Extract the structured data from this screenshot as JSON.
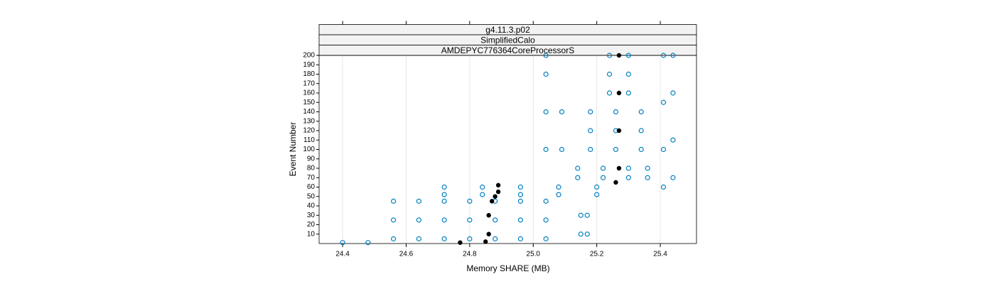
{
  "chart_data": {
    "type": "scatter",
    "strips": [
      "g4.11.3.p02",
      "SimplifiedCalo",
      "AMDEPYC776364CoreProcessorS"
    ],
    "x_label": "Memory SHARE (MB)",
    "y_label": "Event Number",
    "xlim": [
      24.326,
      25.514
    ],
    "ylim": [
      0,
      200
    ],
    "xticks": [
      24.4,
      24.6,
      24.8,
      {
        "value": 25,
        "label": "25.0"
      },
      25.2,
      25.4
    ],
    "yticks": [
      10,
      20,
      30,
      40,
      50,
      60,
      70,
      80,
      90,
      100,
      110,
      120,
      130,
      140,
      150,
      160,
      170,
      180,
      190,
      200
    ],
    "grid": true,
    "series": [
      {
        "color": "#0080c0",
        "marker": "open",
        "x": [
          24.56,
          24.64,
          24.72,
          24.8,
          24.88,
          24.96,
          25.04,
          24.56,
          24.64,
          24.72,
          24.8,
          24.88,
          24.96,
          25.04,
          24.56,
          24.64,
          24.72,
          24.8,
          24.88,
          24.96,
          25.04,
          24.72,
          24.84,
          24.96,
          25.08,
          25.2,
          24.72,
          24.84,
          24.96,
          25.08,
          25.2,
          25.14,
          25.22,
          25.3,
          25.36,
          25.14,
          25.22,
          25.3,
          25.36,
          25.18,
          25.26,
          25.34,
          25.18,
          25.26,
          25.34,
          25.18,
          25.26,
          25.34,
          25.24,
          25.3,
          25.24,
          25.3,
          25.24,
          25.3,
          25.04,
          25.04,
          25.04,
          25.04,
          25.41,
          25.41,
          25.41,
          25.41,
          25.44,
          25.44,
          25.44,
          25.44,
          25.09,
          25.09,
          25.15,
          25.15,
          25.17,
          25.17,
          24.4,
          24.48
        ],
        "y": [
          5,
          5,
          5,
          5,
          5,
          5,
          5,
          25,
          25,
          25,
          25,
          25,
          25,
          25,
          45,
          45,
          45,
          45,
          45,
          45,
          45,
          52,
          52,
          52,
          52,
          52,
          60,
          60,
          60,
          60,
          60,
          70,
          70,
          70,
          70,
          80,
          80,
          80,
          80,
          100,
          100,
          100,
          120,
          120,
          120,
          140,
          140,
          140,
          160,
          160,
          180,
          180,
          200,
          200,
          100,
          140,
          180,
          200,
          60,
          100,
          150,
          200,
          70,
          110,
          160,
          200,
          100,
          140,
          10,
          30,
          10,
          30,
          1,
          1
        ]
      },
      {
        "color": "#000000",
        "marker": "filled",
        "x": [
          24.77,
          24.85,
          24.86,
          24.86,
          24.87,
          24.88,
          24.89,
          24.89,
          25.26,
          25.27,
          25.27,
          25.27,
          25.27
        ],
        "y": [
          1,
          2,
          10,
          30,
          45,
          50,
          55,
          62,
          65,
          80,
          120,
          160,
          200
        ]
      }
    ]
  }
}
